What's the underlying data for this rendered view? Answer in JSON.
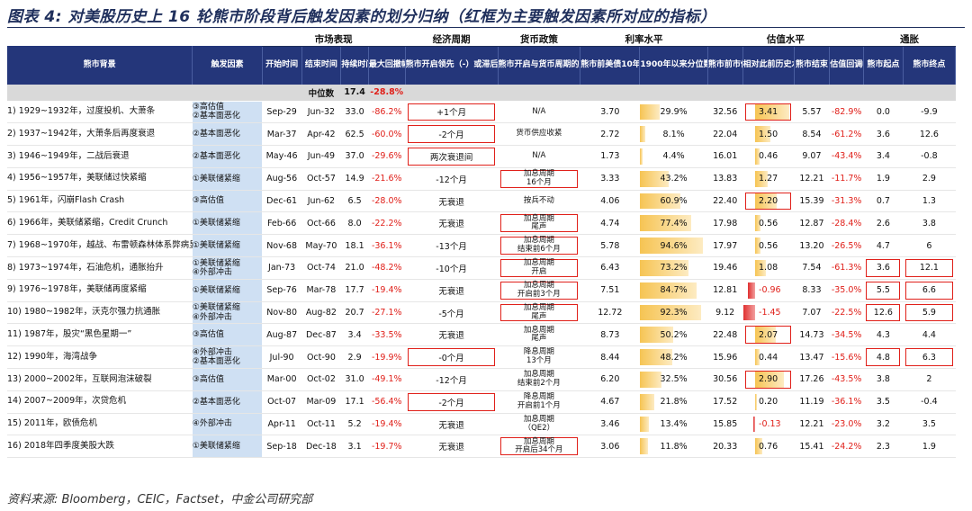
{
  "title": "图表 4: 对美股历史上 16 轮熊市阶段背后触发因素的划分归纳（红框为主要触发因素所对应的指标）",
  "footer": "资料来源: Bloomberg，CEIC，Factset，中金公司研究部",
  "groups": {
    "market": "市场表现",
    "economy": "经济周期",
    "monetary": "货币政策",
    "rates": "利率水平",
    "valuation": "估值水平",
    "inflation": "通胀"
  },
  "headers": {
    "background": "熊市背景",
    "driver": "触发因素",
    "start": "开始时间",
    "end": "结束时间",
    "duration": "持续时间(月)",
    "drawdown": "最大回撤幅度",
    "econ": "熊市开启领先（-）或滞后（+）经济衰退期",
    "monetary": "熊市开启与货币周期的关系",
    "yield": "熊市前美债10年利率",
    "pct": "1900年以来分位数",
    "pe": "熊市前市估值",
    "z": "相对此前历史水平z-score",
    "pe_end": "熊市结束",
    "pe_drop": "估值回调幅度",
    "cpi_start": "熊市起点",
    "cpi_end": "熊市终点"
  },
  "median": {
    "label": "中位数",
    "duration": "17.4",
    "drawdown": "-28.8%"
  },
  "colors": {
    "header_bg": "#24367a",
    "driver_bg": "#cfe0f3",
    "highlight_box": "#e0201a",
    "bar_fill": "#f6c453",
    "negative_text": "#e0201a"
  },
  "rows": [
    {
      "bg": "1) 1929~1932年，过度投机、大萧条",
      "driver": "③高估值\n②基本面恶化",
      "start": "Sep-29",
      "end": "Jun-32",
      "dur": "33.0",
      "dd": "-86.2%",
      "econ": "+1个月",
      "mon": "N/A",
      "y": "3.70",
      "pct": "29.9%",
      "pctv": 29.9,
      "pe": "32.56",
      "z": "3.41",
      "zv": 3.41,
      "pe2": "5.57",
      "drop": "-82.9%",
      "c1": "0.0",
      "c2": "-9.9",
      "box": [
        "econ",
        "z"
      ]
    },
    {
      "bg": "2) 1937~1942年，大萧条后再度衰退",
      "driver": "②基本面恶化",
      "start": "Mar-37",
      "end": "Apr-42",
      "dur": "62.5",
      "dd": "-60.0%",
      "econ": "-2个月",
      "mon": "货币供应收紧",
      "y": "2.72",
      "pct": "8.1%",
      "pctv": 8.1,
      "pe": "22.04",
      "z": "1.50",
      "zv": 1.5,
      "pe2": "8.54",
      "drop": "-61.2%",
      "c1": "3.6",
      "c2": "12.6",
      "box": [
        "econ"
      ]
    },
    {
      "bg": "3) 1946~1949年，二战后衰退",
      "driver": "②基本面恶化",
      "start": "May-46",
      "end": "Jun-49",
      "dur": "37.0",
      "dd": "-29.6%",
      "econ": "两次衰退间",
      "mon": "N/A",
      "y": "1.73",
      "pct": "4.4%",
      "pctv": 4.4,
      "pe": "16.01",
      "z": "0.46",
      "zv": 0.46,
      "pe2": "9.07",
      "drop": "-43.4%",
      "c1": "3.4",
      "c2": "-0.8",
      "box": [
        "econ"
      ]
    },
    {
      "bg": "4) 1956~1957年，美联储过快紧缩",
      "driver": "①美联储紧缩",
      "start": "Aug-56",
      "end": "Oct-57",
      "dur": "14.9",
      "dd": "-21.6%",
      "econ": "-12个月",
      "mon": "加息周期\n16个月",
      "y": "3.33",
      "pct": "43.2%",
      "pctv": 43.2,
      "pe": "13.83",
      "z": "1.27",
      "zv": 1.27,
      "pe2": "12.21",
      "drop": "-11.7%",
      "c1": "1.9",
      "c2": "2.9",
      "box": [
        "mon"
      ]
    },
    {
      "bg": "5) 1961年，闪崩Flash Crash",
      "driver": "③高估值",
      "start": "Dec-61",
      "end": "Jun-62",
      "dur": "6.5",
      "dd": "-28.0%",
      "econ": "无衰退",
      "mon": "按兵不动",
      "y": "4.06",
      "pct": "60.9%",
      "pctv": 60.9,
      "pe": "22.40",
      "z": "2.20",
      "zv": 2.2,
      "pe2": "15.39",
      "drop": "-31.3%",
      "c1": "0.7",
      "c2": "1.3",
      "box": [
        "z"
      ]
    },
    {
      "bg": "6) 1966年，美联储紧缩，Credit Crunch",
      "driver": "①美联储紧缩",
      "start": "Feb-66",
      "end": "Oct-66",
      "dur": "8.0",
      "dd": "-22.2%",
      "econ": "无衰退",
      "mon": "加息周期\n尾声",
      "y": "4.74",
      "pct": "77.4%",
      "pctv": 77.4,
      "pe": "17.98",
      "z": "0.56",
      "zv": 0.56,
      "pe2": "12.87",
      "drop": "-28.4%",
      "c1": "2.6",
      "c2": "3.8",
      "box": [
        "mon"
      ]
    },
    {
      "bg": "7) 1968~1970年，越战、布雷顿森林体系弊病显现、通胀抬升",
      "driver": "①美联储紧缩",
      "start": "Nov-68",
      "end": "May-70",
      "dur": "18.1",
      "dd": "-36.1%",
      "econ": "-13个月",
      "mon": "加息周期\n结束前6个月",
      "y": "5.78",
      "pct": "94.6%",
      "pctv": 94.6,
      "pe": "17.97",
      "z": "0.56",
      "zv": 0.56,
      "pe2": "13.20",
      "drop": "-26.5%",
      "c1": "4.7",
      "c2": "6",
      "box": [
        "mon"
      ]
    },
    {
      "bg": "8) 1973~1974年，石油危机，通胀抬升",
      "driver": "①美联储紧缩\n④外部冲击",
      "start": "Jan-73",
      "end": "Oct-74",
      "dur": "21.0",
      "dd": "-48.2%",
      "econ": "-10个月",
      "mon": "加息周期\n开启",
      "y": "6.43",
      "pct": "73.2%",
      "pctv": 73.2,
      "pe": "19.46",
      "z": "1.08",
      "zv": 1.08,
      "pe2": "7.54",
      "drop": "-61.3%",
      "c1": "3.6",
      "c2": "12.1",
      "box": [
        "mon",
        "cpi"
      ]
    },
    {
      "bg": "9) 1976~1978年，美联储再度紧缩",
      "driver": "①美联储紧缩",
      "start": "Sep-76",
      "end": "Mar-78",
      "dur": "17.7",
      "dd": "-19.4%",
      "econ": "无衰退",
      "mon": "加息周期\n开启前3个月",
      "y": "7.51",
      "pct": "84.7%",
      "pctv": 84.7,
      "pe": "12.81",
      "z": "-0.96",
      "zv": -0.96,
      "pe2": "8.33",
      "drop": "-35.0%",
      "c1": "5.5",
      "c2": "6.6",
      "box": [
        "mon",
        "cpi"
      ]
    },
    {
      "bg": "10) 1980~1982年，沃克尔强力抗通胀",
      "driver": "①美联储紧缩\n④外部冲击",
      "start": "Nov-80",
      "end": "Aug-82",
      "dur": "20.7",
      "dd": "-27.1%",
      "econ": "-5个月",
      "mon": "加息周期\n尾声",
      "y": "12.72",
      "pct": "92.3%",
      "pctv": 92.3,
      "pe": "9.12",
      "z": "-1.45",
      "zv": -1.45,
      "pe2": "7.07",
      "drop": "-22.5%",
      "c1": "12.6",
      "c2": "5.9",
      "box": [
        "mon",
        "cpi"
      ]
    },
    {
      "bg": "11) 1987年，股灾“黑色星期一”",
      "driver": "③高估值",
      "start": "Aug-87",
      "end": "Dec-87",
      "dur": "3.4",
      "dd": "-33.5%",
      "econ": "无衰退",
      "mon": "加息周期\n尾声",
      "y": "8.73",
      "pct": "50.2%",
      "pctv": 50.2,
      "pe": "22.48",
      "z": "2.07",
      "zv": 2.07,
      "pe2": "14.73",
      "drop": "-34.5%",
      "c1": "4.3",
      "c2": "4.4",
      "box": [
        "z"
      ]
    },
    {
      "bg": "12) 1990年，海湾战争",
      "driver": "④外部冲击\n②基本面恶化",
      "start": "Jul-90",
      "end": "Oct-90",
      "dur": "2.9",
      "dd": "-19.9%",
      "econ": "-0个月",
      "mon": "降息周期\n13个月",
      "y": "8.44",
      "pct": "48.2%",
      "pctv": 48.2,
      "pe": "15.96",
      "z": "0.44",
      "zv": 0.44,
      "pe2": "13.47",
      "drop": "-15.6%",
      "c1": "4.8",
      "c2": "6.3",
      "box": [
        "econ",
        "cpi"
      ]
    },
    {
      "bg": "13) 2000~2002年，互联网泡沫破裂",
      "driver": "③高估值",
      "start": "Mar-00",
      "end": "Oct-02",
      "dur": "31.0",
      "dd": "-49.1%",
      "econ": "-12个月",
      "mon": "加息周期\n结束前2个月",
      "y": "6.20",
      "pct": "32.5%",
      "pctv": 32.5,
      "pe": "30.56",
      "z": "2.90",
      "zv": 2.9,
      "pe2": "17.26",
      "drop": "-43.5%",
      "c1": "3.8",
      "c2": "2",
      "box": [
        "z"
      ]
    },
    {
      "bg": "14) 2007~2009年，次贷危机",
      "driver": "②基本面恶化",
      "start": "Oct-07",
      "end": "Mar-09",
      "dur": "17.1",
      "dd": "-56.4%",
      "econ": "-2个月",
      "mon": "降息周期\n开启前1个月",
      "y": "4.67",
      "pct": "21.8%",
      "pctv": 21.8,
      "pe": "17.52",
      "z": "0.20",
      "zv": 0.2,
      "pe2": "11.19",
      "drop": "-36.1%",
      "c1": "3.5",
      "c2": "-0.4",
      "box": [
        "econ"
      ]
    },
    {
      "bg": "15) 2011年，欧债危机",
      "driver": "④外部冲击",
      "start": "Apr-11",
      "end": "Oct-11",
      "dur": "5.2",
      "dd": "-19.4%",
      "econ": "无衰退",
      "mon": "加息周期\n（QE2）",
      "y": "3.46",
      "pct": "13.4%",
      "pctv": 13.4,
      "pe": "15.85",
      "z": "-0.13",
      "zv": -0.13,
      "pe2": "12.21",
      "drop": "-23.0%",
      "c1": "3.2",
      "c2": "3.5",
      "box": []
    },
    {
      "bg": "16) 2018年四季度美股大跌",
      "driver": "①美联储紧缩",
      "start": "Sep-18",
      "end": "Dec-18",
      "dur": "3.1",
      "dd": "-19.7%",
      "econ": "无衰退",
      "mon": "加息周期\n开启后34个月",
      "y": "3.06",
      "pct": "11.8%",
      "pctv": 11.8,
      "pe": "20.33",
      "z": "0.76",
      "zv": 0.76,
      "pe2": "15.41",
      "drop": "-24.2%",
      "c1": "2.3",
      "c2": "1.9",
      "box": [
        "mon"
      ]
    }
  ]
}
